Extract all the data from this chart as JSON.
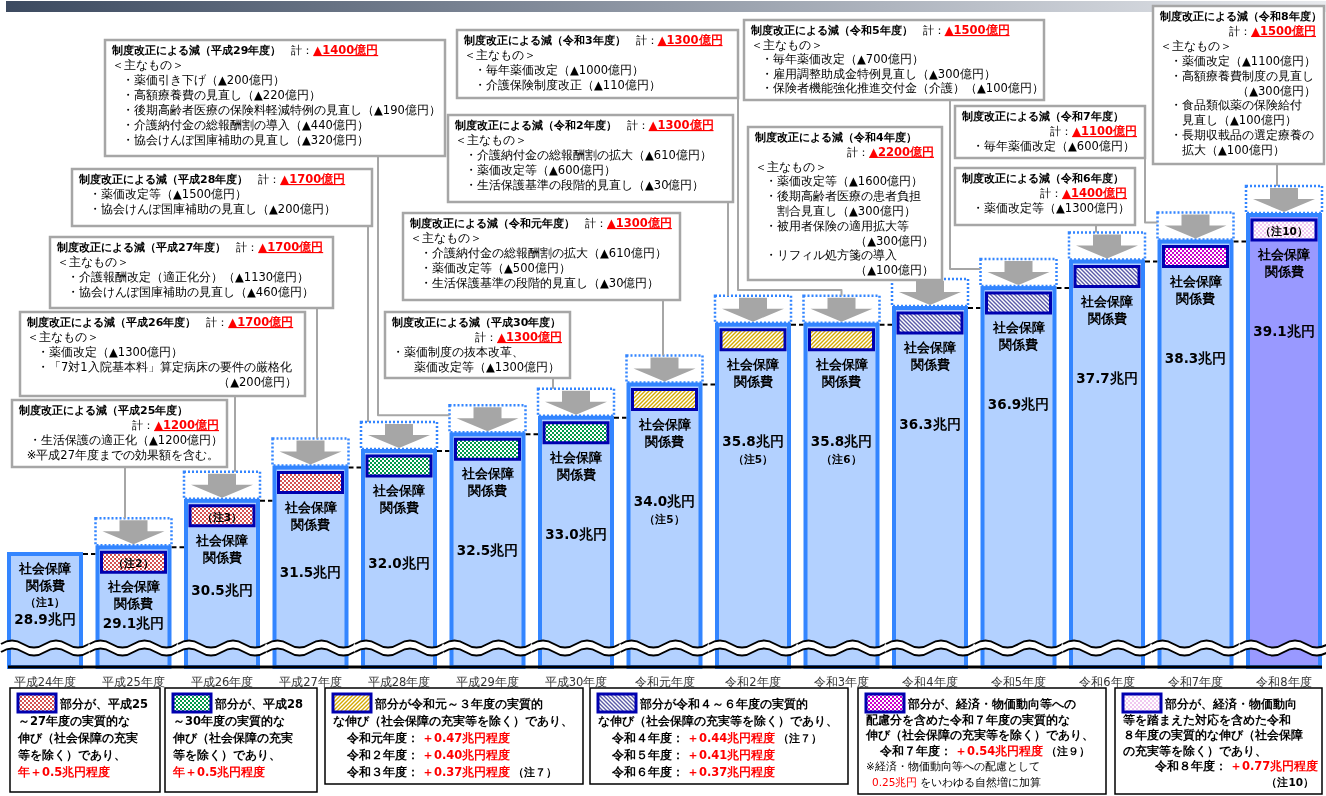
{
  "chart_data": {
    "type": "bar",
    "categories": [
      "平成24年度",
      "平成25年度",
      "平成26年度",
      "平成27年度",
      "平成28年度",
      "平成29年度",
      "平成30年度",
      "令和元年度",
      "令和2年度",
      "令和3年度",
      "令和4年度",
      "令和5年度",
      "令和6年度",
      "令和7年度",
      "令和8年度"
    ],
    "series": [
      {
        "name": "社会保障関係費",
        "values": [
          28.9,
          29.1,
          30.5,
          31.5,
          32.0,
          32.5,
          33.0,
          34.0,
          35.8,
          35.8,
          36.3,
          36.9,
          37.7,
          38.3,
          39.1
        ],
        "colors": [
          "#b3d1ff",
          "#b3d1ff",
          "#b3d1ff",
          "#b3d1ff",
          "#b3d1ff",
          "#b3d1ff",
          "#b3d1ff",
          "#b3d1ff",
          "#b3d1ff",
          "#b3d1ff",
          "#b3d1ff",
          "#b3d1ff",
          "#b3d1ff",
          "#b3d1ff",
          "#9999ff"
        ],
        "value_labels": [
          "28.9兆円",
          "29.1兆円",
          "30.5兆円",
          "31.5兆円",
          "32.0兆円",
          "32.5兆円",
          "33.0兆円",
          "34.0兆円",
          "35.8兆円",
          "35.8兆円",
          "36.3兆円",
          "36.9兆円",
          "37.7兆円",
          "38.3兆円",
          "39.1兆円"
        ]
      }
    ],
    "ylim": [
      25.5,
      39.1
    ],
    "annotations": [
      "（注1）",
      "（注2）",
      "（注3）",
      "（注5）",
      "（注5）",
      "（注6）",
      "（注10）",
      "制度改正による減（平成25年度）",
      "計：",
      "▲1200億円",
      "・生活保護の適正化（▲1200億円）",
      "※平成27年度までの効果額を含む。",
      "制度改正による減（平成26年度）",
      "計：",
      "▲1700億円",
      "＜主なもの＞",
      "・薬価改定（▲1300億円）",
      "・「7対1入院基本料」算定病床の要件の厳格化",
      "（▲200億円）",
      "制度改正による減（平成27年度）",
      "計：",
      "▲1700億円",
      "＜主なもの＞",
      "・介護報酬改定（適正化分）（▲1130億円）",
      "・協会けんぽ国庫補助の見直し（▲460億円）",
      "制度改正による減（平成28年度）",
      "計：",
      "▲1700億円",
      "・薬価改定等（▲1500億円）",
      "・協会けんぽ国庫補助の見直し（▲200億円）",
      "制度改正による減（平成29年度）",
      "計：",
      "▲1400億円",
      "＜主なもの＞",
      "・薬価引き下げ（▲200億円）",
      "・高額療養費の見直し（▲220億円）",
      "・後期高齢者医療の保険料軽減特例の見直し（▲190億円）",
      "・介護納付金の総報酬割の導入（▲440億円）",
      "・協会けんぽ国庫補助の見直し（▲320億円）",
      "制度改正による減（平成30年度）",
      "計：",
      "▲1300億円",
      "・薬価制度の抜本改革、",
      "薬価改定等（▲1300億円）",
      "制度改正による減（令和元年度）",
      "計：",
      "▲1300億円",
      "＜主なもの＞",
      "・介護納付金の総報酬割の拡大（▲610億円）",
      "・薬価改定等（▲500億円）",
      "・生活保護基準の段階的見直し（▲30億円）",
      "制度改正による減（令和2年度）",
      "計：",
      "▲1300億円",
      "＜主なもの＞",
      "・介護納付金の総報酬割の拡大（▲610億円）",
      "・薬価改定等（▲600億円）",
      "・生活保護基準の段階的見直し（▲30億円）",
      "制度改正による減（令和3年度）",
      "計：",
      "▲1300億円",
      "＜主なもの＞",
      "・毎年薬価改定（▲1000億円）",
      "・介護保険制度改正（▲110億円）",
      "制度改正による減（令和4年度）",
      "計：",
      "▲2200億円",
      "＜主なもの＞",
      "・薬価改定等（▲1600億円）",
      "・後期高齢者医療の患者負担",
      "割合見直し（▲300億円）",
      "・被用者保険の適用拡大等",
      "（▲300億円）",
      "・リフィル処方箋の導入",
      "（▲100億円）",
      "制度改正による減（令和5年度）",
      "計：",
      "▲1500億円",
      "＜主なもの＞",
      "・毎年薬価改定（▲700億円）",
      "・雇用調整助成金特例見直し（▲300億円）",
      "・保険者機能強化推進交付金（介護）（▲100億円）",
      "制度改正による減（令和7年度）",
      "計：",
      "▲1100億円",
      "・毎年薬価改定（▲600億円）",
      "制度改正による減（令和6年度）",
      "計：",
      "▲1400億円",
      "・薬価改定等（▲1300億円）",
      "制度改正による減（令和8年度）",
      "計：",
      "▲1500億円",
      "＜主なもの＞",
      "・薬価改定（▲1100億円）",
      "・高額療養費制度の見直し",
      "（▲300億円）",
      "・食品類似薬の保険給付",
      "見直し（▲100億円）",
      "・長期収載品の選定療養の",
      "拡大（▲100億円）",
      "部分が、平成25",
      "～27年度の実質的な",
      "伸び（社会保障の充実",
      "等を除く）であり、",
      "年＋0.5兆円程度",
      "部分が、平成28",
      "～30年度の実質的な",
      "伸び（社会保障の充実",
      "等を除く）であり、",
      "年＋0.5兆円程度",
      "部分が令和元～３年度の実質的",
      "な伸び（社会保障の充実等を除く）であり、",
      "令和元年度：",
      "＋0.47兆円程度",
      "令和２年度：",
      "＋0.40兆円程度",
      "令和３年度：",
      "＋0.37兆円程度",
      "（注７）",
      "部分が令和４～６年度の実質的",
      "な伸び（社会保障の充実等を除く）であり、",
      "令和４年度：",
      "＋0.44兆円程度",
      "（注７）",
      "令和５年度：",
      "＋0.41兆円程度",
      "令和６年度：",
      "＋0.37兆円程度",
      "部分が、経済・物価動向等への",
      "配慮分を含めた令和７年度の実質的な",
      "伸び（社会保障の充実等を除く）であり、",
      "令和７年度：",
      "＋0.54兆円程度",
      "（注９）",
      "※経済・物価動向等への配慮として",
      "0.25兆円",
      "をいわゆる自然増に加算",
      "部分が、経済・物価動向",
      "等を踏まえた対応を含めた令和",
      "８年度の実質的な伸び（社会保障",
      "の充実等を除く）であり、",
      "令和８年度：",
      "＋0.77兆円程度",
      "（注10）"
    ]
  }
}
